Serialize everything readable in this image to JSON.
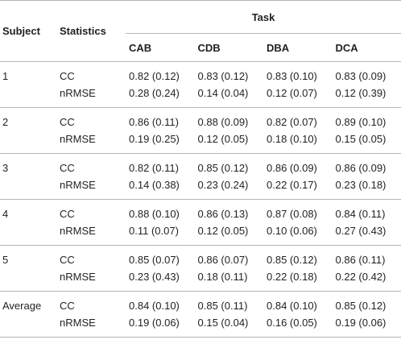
{
  "table": {
    "headers": {
      "subject": "Subject",
      "statistics": "Statistics",
      "task": "Task",
      "tasks": [
        "CAB",
        "CDB",
        "DBA",
        "DCA"
      ]
    },
    "rows": [
      {
        "subject": "1",
        "stats": [
          "CC",
          "nRMSE"
        ],
        "values": [
          [
            "0.82 (0.12)",
            "0.28 (0.24)"
          ],
          [
            "0.83 (0.12)",
            "0.14 (0.04)"
          ],
          [
            "0.83 (0.10)",
            "0.12 (0.07)"
          ],
          [
            "0.83 (0.09)",
            "0.12 (0.39)"
          ]
        ]
      },
      {
        "subject": "2",
        "stats": [
          "CC",
          "nRMSE"
        ],
        "values": [
          [
            "0.86 (0.11)",
            "0.19 (0.25)"
          ],
          [
            "0.88 (0.09)",
            "0.12 (0.05)"
          ],
          [
            "0.82 (0.07)",
            "0.18 (0.10)"
          ],
          [
            "0.89 (0.10)",
            "0.15 (0.05)"
          ]
        ]
      },
      {
        "subject": "3",
        "stats": [
          "CC",
          "nRMSE"
        ],
        "values": [
          [
            "0.82 (0.11)",
            "0.14 (0.38)"
          ],
          [
            "0.85 (0.12)",
            "0.23 (0.24)"
          ],
          [
            "0.86 (0.09)",
            "0.22 (0.17)"
          ],
          [
            "0.86 (0.09)",
            "0.23 (0.18)"
          ]
        ]
      },
      {
        "subject": "4",
        "stats": [
          "CC",
          "nRMSE"
        ],
        "values": [
          [
            "0.88 (0.10)",
            "0.11 (0.07)"
          ],
          [
            "0.86 (0.13)",
            "0.12 (0.05)"
          ],
          [
            "0.87 (0.08)",
            "0.10 (0.06)"
          ],
          [
            "0.84 (0.11)",
            "0.27 (0.43)"
          ]
        ]
      },
      {
        "subject": "5",
        "stats": [
          "CC",
          "nRMSE"
        ],
        "values": [
          [
            "0.85 (0.07)",
            "0.23 (0.43)"
          ],
          [
            "0.86 (0.07)",
            "0.18 (0.11)"
          ],
          [
            "0.85 (0.12)",
            "0.22 (0.18)"
          ],
          [
            "0.86 (0.11)",
            "0.22 (0.42)"
          ]
        ]
      },
      {
        "subject": "Average",
        "stats": [
          "CC",
          "nRMSE"
        ],
        "values": [
          [
            "0.84 (0.10)",
            "0.19 (0.06)"
          ],
          [
            "0.85 (0.11)",
            "0.15 (0.04)"
          ],
          [
            "0.84 (0.10)",
            "0.16 (0.05)"
          ],
          [
            "0.85 (0.12)",
            "0.19 (0.06)"
          ]
        ]
      }
    ]
  }
}
